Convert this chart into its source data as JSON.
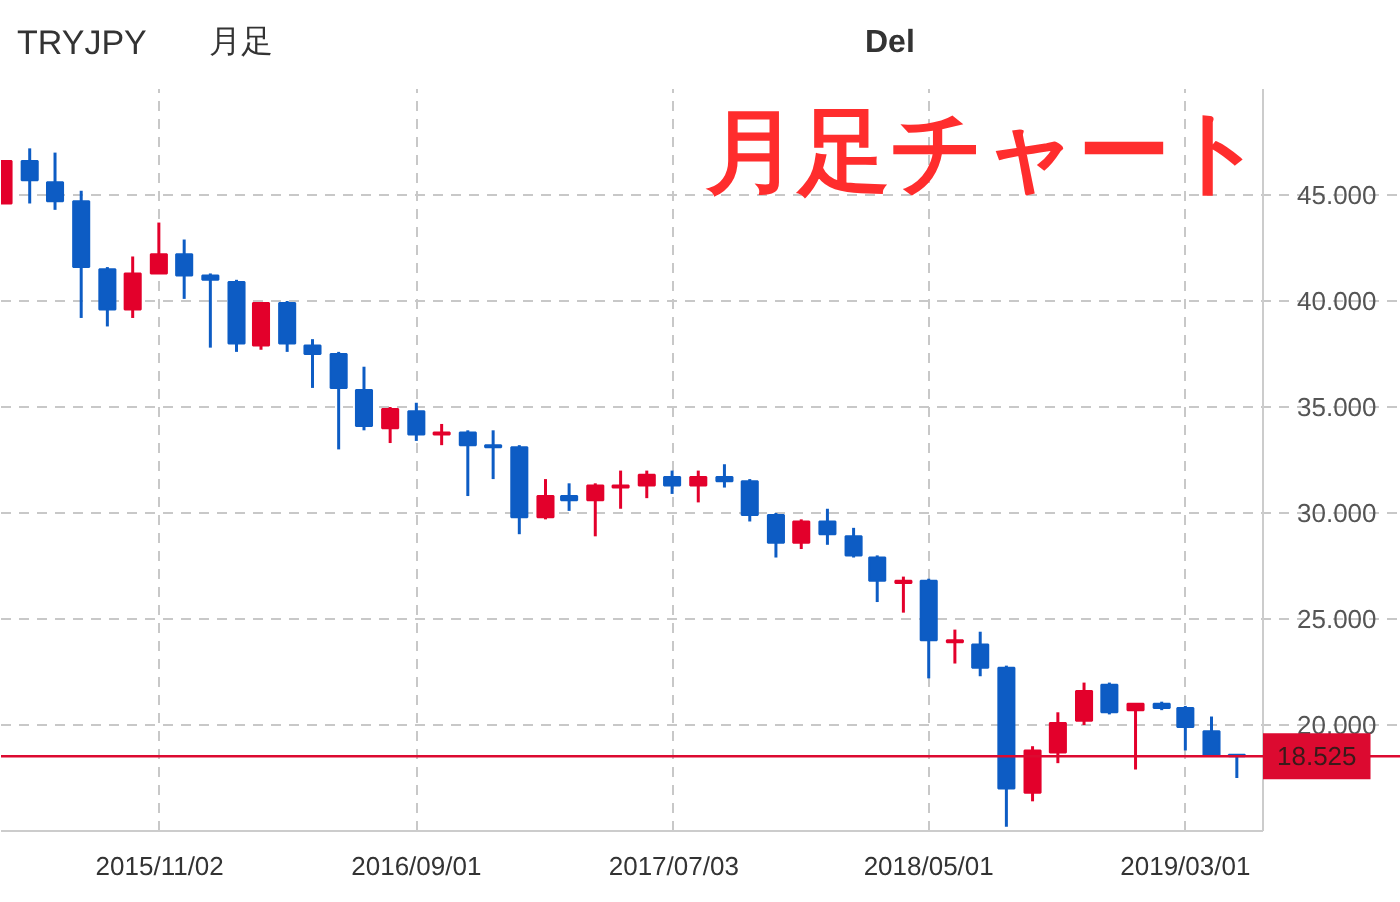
{
  "chart_data": {
    "type": "candlestick",
    "title": "月足チャート",
    "annotations": [
      "TRYJPY",
      "月足",
      "Del"
    ],
    "x": [
      "2015-05",
      "2015-06",
      "2015-07",
      "2015-08",
      "2015-09",
      "2015-10",
      "2015-11",
      "2015-12",
      "2016-01",
      "2016-02",
      "2016-03",
      "2016-04",
      "2016-05",
      "2016-06",
      "2016-07",
      "2016-08",
      "2016-09",
      "2016-10",
      "2016-11",
      "2016-12",
      "2017-01",
      "2017-02",
      "2017-03",
      "2017-04",
      "2017-05",
      "2017-06",
      "2017-07",
      "2017-08",
      "2017-09",
      "2017-10",
      "2017-11",
      "2017-12",
      "2018-01",
      "2018-02",
      "2018-03",
      "2018-04",
      "2018-05",
      "2018-06",
      "2018-07",
      "2018-08",
      "2018-09",
      "2018-10",
      "2018-11",
      "2018-12",
      "2019-01",
      "2019-02",
      "2019-03",
      "2019-04",
      "2019-05"
    ],
    "ohlc": [
      [
        44.6,
        46.6,
        44.6,
        46.6
      ],
      [
        46.6,
        47.2,
        44.6,
        45.7
      ],
      [
        45.6,
        47.0,
        44.3,
        44.7
      ],
      [
        44.7,
        45.2,
        39.2,
        41.6
      ],
      [
        41.5,
        41.6,
        38.8,
        39.6
      ],
      [
        39.6,
        42.1,
        39.2,
        41.3
      ],
      [
        41.3,
        43.7,
        41.3,
        42.2
      ],
      [
        42.2,
        42.9,
        40.1,
        41.2
      ],
      [
        41.2,
        41.3,
        37.8,
        41.0
      ],
      [
        40.9,
        41.0,
        37.6,
        38.0
      ],
      [
        37.9,
        39.9,
        37.7,
        39.9
      ],
      [
        39.9,
        40.0,
        37.6,
        38.0
      ],
      [
        37.9,
        38.2,
        35.9,
        37.5
      ],
      [
        37.5,
        37.6,
        33.0,
        35.9
      ],
      [
        35.8,
        36.9,
        33.9,
        34.1
      ],
      [
        34.0,
        35.0,
        33.3,
        34.9
      ],
      [
        34.8,
        35.2,
        33.4,
        33.7
      ],
      [
        33.7,
        34.2,
        33.2,
        33.8
      ],
      [
        33.8,
        33.9,
        30.8,
        33.2
      ],
      [
        33.2,
        33.9,
        31.6,
        33.1
      ],
      [
        33.1,
        33.2,
        29.0,
        29.8
      ],
      [
        29.8,
        31.6,
        29.7,
        30.8
      ],
      [
        30.8,
        31.4,
        30.1,
        30.6
      ],
      [
        30.6,
        31.4,
        28.9,
        31.3
      ],
      [
        31.2,
        32.0,
        30.2,
        31.3
      ],
      [
        31.3,
        32.0,
        30.7,
        31.8
      ],
      [
        31.7,
        32.0,
        30.9,
        31.3
      ],
      [
        31.3,
        32.0,
        30.5,
        31.7
      ],
      [
        31.7,
        32.3,
        31.2,
        31.5
      ],
      [
        31.5,
        31.6,
        29.6,
        29.9
      ],
      [
        29.9,
        30.0,
        27.9,
        28.6
      ],
      [
        28.6,
        29.7,
        28.3,
        29.6
      ],
      [
        29.6,
        30.2,
        28.5,
        29.0
      ],
      [
        28.9,
        29.3,
        27.9,
        28.0
      ],
      [
        27.9,
        28.0,
        25.8,
        26.8
      ],
      [
        26.7,
        27.0,
        25.3,
        26.8
      ],
      [
        26.8,
        26.9,
        22.2,
        24.0
      ],
      [
        23.9,
        24.5,
        22.9,
        24.0
      ],
      [
        23.8,
        24.4,
        22.3,
        22.7
      ],
      [
        22.7,
        22.8,
        15.2,
        17.0
      ],
      [
        16.8,
        19.0,
        16.4,
        18.8
      ],
      [
        18.7,
        20.6,
        18.2,
        20.1
      ],
      [
        20.2,
        22.0,
        20.0,
        21.6
      ],
      [
        21.9,
        22.0,
        20.5,
        20.6
      ],
      [
        20.7,
        21.0,
        17.9,
        21.0
      ],
      [
        21.0,
        21.1,
        20.7,
        20.8
      ],
      [
        20.8,
        20.9,
        18.8,
        19.9
      ],
      [
        19.7,
        20.4,
        18.5,
        18.55
      ],
      [
        18.6,
        18.6,
        17.5,
        18.525
      ]
    ],
    "colors": [
      "#e3002b",
      "#0d5cc4",
      "#0d5cc4",
      "#0d5cc4",
      "#0d5cc4",
      "#e3002b",
      "#e3002b",
      "#0d5cc4",
      "#0d5cc4",
      "#0d5cc4",
      "#e3002b",
      "#0d5cc4",
      "#0d5cc4",
      "#0d5cc4",
      "#0d5cc4",
      "#e3002b",
      "#0d5cc4",
      "#e3002b",
      "#0d5cc4",
      "#0d5cc4",
      "#0d5cc4",
      "#e3002b",
      "#0d5cc4",
      "#e3002b",
      "#e3002b",
      "#e3002b",
      "#0d5cc4",
      "#e3002b",
      "#0d5cc4",
      "#0d5cc4",
      "#0d5cc4",
      "#e3002b",
      "#0d5cc4",
      "#0d5cc4",
      "#0d5cc4",
      "#e3002b",
      "#0d5cc4",
      "#e3002b",
      "#0d5cc4",
      "#0d5cc4",
      "#e3002b",
      "#e3002b",
      "#e3002b",
      "#0d5cc4",
      "#e3002b",
      "#0d5cc4",
      "#0d5cc4",
      "#0d5cc4",
      "#0d5cc4"
    ],
    "xlim": [
      "2015-04-28",
      "2019-06-01"
    ],
    "ylim": [
      15,
      50
    ],
    "xticks": [
      {
        "value": "2015-11-02",
        "label": "2015/11/02"
      },
      {
        "value": "2016-09-01",
        "label": "2016/09/01"
      },
      {
        "value": "2017-07-03",
        "label": "2017/07/03"
      },
      {
        "value": "2018-05-01",
        "label": "2018/05/01"
      },
      {
        "value": "2019-03-01",
        "label": "2019/03/01"
      }
    ],
    "yticks": [
      {
        "value": 20,
        "label": "20.000"
      },
      {
        "value": 25,
        "label": "25.000"
      },
      {
        "value": 30,
        "label": "30.000"
      },
      {
        "value": 35,
        "label": "35.000"
      },
      {
        "value": 40,
        "label": "40.000"
      },
      {
        "value": 45,
        "label": "45.000"
      }
    ],
    "grid": true,
    "ref_lines": [
      {
        "axis": "y",
        "value": 18.525,
        "label": "18.525",
        "color": "#dc0a30"
      }
    ]
  }
}
